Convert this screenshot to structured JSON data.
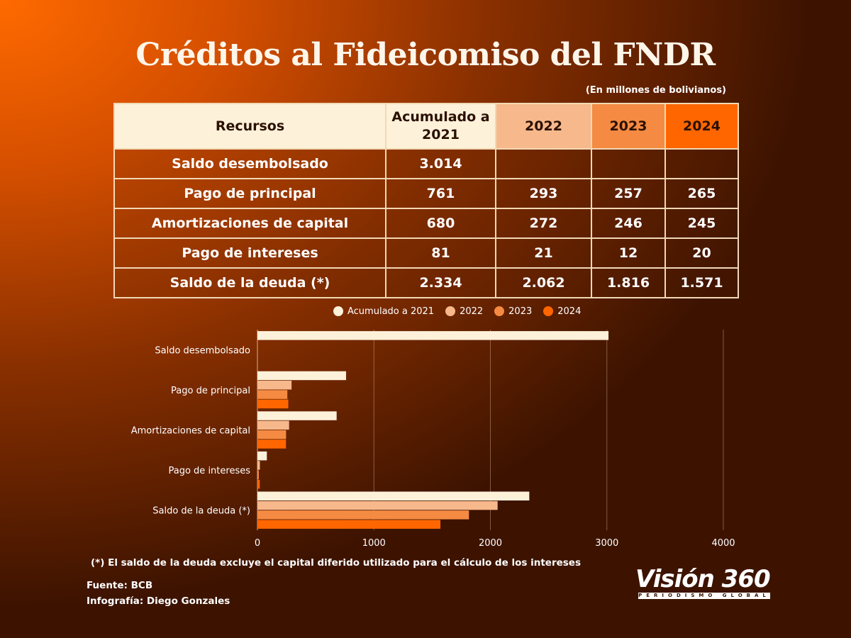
{
  "header": {
    "title": "Créditos al Fideicomiso del FNDR",
    "units": "(En millones de bolivianos)"
  },
  "table": {
    "headers": [
      "Recursos",
      "Acumulado a 2021",
      "2022",
      "2023",
      "2024"
    ],
    "rows": [
      [
        "Saldo desembolsado",
        "3.014",
        "",
        "",
        ""
      ],
      [
        "Pago de principal",
        "761",
        "293",
        "257",
        "265"
      ],
      [
        "Amortizaciones de capital",
        "680",
        "272",
        "246",
        "245"
      ],
      [
        "Pago de intereses",
        "81",
        "21",
        "12",
        "20"
      ],
      [
        "Saldo de la deuda (*)",
        "2.334",
        "2.062",
        "1.816",
        "1.571"
      ]
    ]
  },
  "chart_data": {
    "type": "bar",
    "orientation": "horizontal",
    "categories": [
      "Saldo desembolsado",
      "Pago de principal",
      "Amortizaciones de capital",
      "Pago de intereses",
      "Saldo de la deuda (*)"
    ],
    "series": [
      {
        "name": "Acumulado a 2021",
        "values": [
          3014,
          761,
          680,
          81,
          2334
        ],
        "color": "#fdf1da"
      },
      {
        "name": "2022",
        "values": [
          null,
          293,
          272,
          21,
          2062
        ],
        "color": "#f7b88c"
      },
      {
        "name": "2023",
        "values": [
          null,
          257,
          246,
          12,
          1816
        ],
        "color": "#f58a42"
      },
      {
        "name": "2024",
        "values": [
          null,
          265,
          245,
          20,
          1571
        ],
        "color": "#ff6600"
      }
    ],
    "xlim": [
      0,
      4000
    ],
    "xticks": [
      0,
      1000,
      2000,
      3000,
      4000
    ],
    "grid": true,
    "legend": "top"
  },
  "footer": {
    "footnote": "(*) El saldo de la deuda excluye el capital diferido utilizado para el cálculo de los intereses",
    "source": "Fuente: BCB",
    "credit": "Infografía: Diego Gonzales",
    "logo_text": "Visión 360",
    "logo_tagline": "PERIODISMO GLOBAL"
  }
}
